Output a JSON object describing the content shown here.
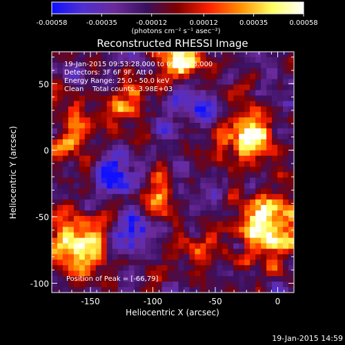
{
  "chart_data": {
    "type": "heatmap",
    "title": "Reconstructed RHESSI Image",
    "xlabel": "Heliocentric X (arcsec)",
    "ylabel": "Heliocentric Y (arcsec)",
    "xlim": [
      -181,
      13
    ],
    "ylim": [
      -107,
      74
    ],
    "x_ticks": [
      {
        "value": -150,
        "label": "-150"
      },
      {
        "value": -100,
        "label": "-100"
      },
      {
        "value": -50,
        "label": "-50"
      },
      {
        "value": 0,
        "label": "0"
      }
    ],
    "y_ticks": [
      {
        "value": 50,
        "label": "50"
      },
      {
        "value": 0,
        "label": "0"
      },
      {
        "value": -50,
        "label": "-50"
      },
      {
        "value": -100,
        "label": "-100"
      }
    ],
    "colorbar": {
      "min": -0.00058,
      "max": 0.00058,
      "ticks": [
        {
          "value": -0.00058,
          "label": "-0.00058"
        },
        {
          "value": -0.00035,
          "label": "-0.00035"
        },
        {
          "value": -0.00012,
          "label": "-0.00012"
        },
        {
          "value": 0.00012,
          "label": "0.00012"
        },
        {
          "value": 0.00035,
          "label": "0.00035"
        },
        {
          "value": 0.00058,
          "label": "0.00058"
        }
      ],
      "units_label": "(photons cm⁻² s⁻¹ asec⁻²)",
      "colors": [
        "#1010ff",
        "#5030d0",
        "#6a2a9a",
        "#3a1060",
        "#800000",
        "#ff2000",
        "#ff9000",
        "#ffff60",
        "#ffffff"
      ]
    },
    "annotations": [
      "19-Jan-2015 09:53:28.000 to 09:53:28.000",
      "Detectors: 3F 6F 9F, Att 0",
      "Energy Range: 25.0 - 50.0 keV",
      "Clean    Total counts: 3.98E+03"
    ],
    "peak_label": "Position of Peak = [-66,79]",
    "peak_position": [
      -66,
      79
    ],
    "source_regions": [
      {
        "x": -78,
        "y": 68,
        "sx": 12,
        "sy": 10,
        "amp": 1.0
      },
      {
        "x": -25,
        "y": 12,
        "sx": 18,
        "sy": 12,
        "amp": 0.95
      },
      {
        "x": -8,
        "y": -60,
        "sx": 18,
        "sy": 18,
        "amp": 0.95
      },
      {
        "x": -160,
        "y": -72,
        "sx": 18,
        "sy": 16,
        "amp": 0.75
      },
      {
        "x": -162,
        "y": 15,
        "sx": 12,
        "sy": 16,
        "amp": 0.6
      },
      {
        "x": -118,
        "y": 38,
        "sx": 14,
        "sy": 12,
        "amp": 0.55
      },
      {
        "x": -95,
        "y": -40,
        "sx": 10,
        "sy": 18,
        "amp": 0.55
      },
      {
        "x": -60,
        "y": -75,
        "sx": 12,
        "sy": 10,
        "amp": 0.45
      },
      {
        "x": -130,
        "y": -20,
        "sx": 10,
        "sy": 10,
        "amp": -0.6
      },
      {
        "x": -112,
        "y": -60,
        "sx": 12,
        "sy": 10,
        "amp": -0.7
      },
      {
        "x": -60,
        "y": 30,
        "sx": 12,
        "sy": 10,
        "amp": -0.5
      }
    ]
  },
  "footer_timestamp": "19-Jan-2015 14:59"
}
